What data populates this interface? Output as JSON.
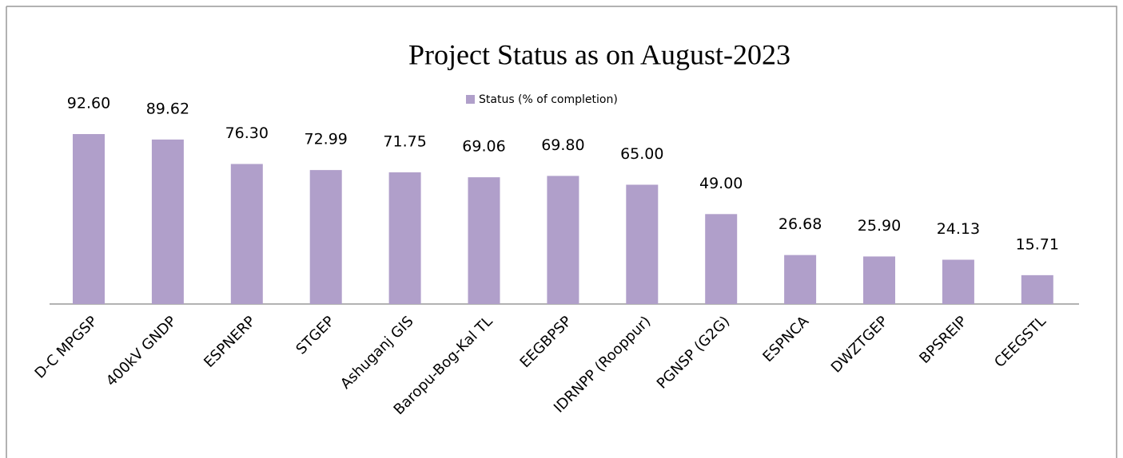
{
  "chart_data": {
    "type": "bar",
    "title": "Project Status as on August-2023",
    "legend": "Status (% of completion)",
    "categories": [
      "D-C MPGSP",
      "400kV GNDP",
      "ESPNERP",
      "STGEP",
      "Ashuganj GIS",
      "Baropu-Bog-Kal TL",
      "EEGBPSP",
      "IDRNPP (Rooppur)",
      "PGNSP (G2G)",
      "ESPNCA",
      "DWZTGEP",
      "BPSREIP",
      "CEEGSTL"
    ],
    "values": [
      92.6,
      89.62,
      76.3,
      72.99,
      71.75,
      69.06,
      69.8,
      65.0,
      49.0,
      26.68,
      25.9,
      24.13,
      15.71
    ],
    "value_labels": [
      "92.60",
      "89.62",
      "76.30",
      "72.99",
      "71.75",
      "69.06",
      "69.80",
      "65.00",
      "49.00",
      "26.68",
      "25.90",
      "24.13",
      "15.71"
    ],
    "color": "#b09fca",
    "ylim": [
      0,
      100
    ]
  }
}
